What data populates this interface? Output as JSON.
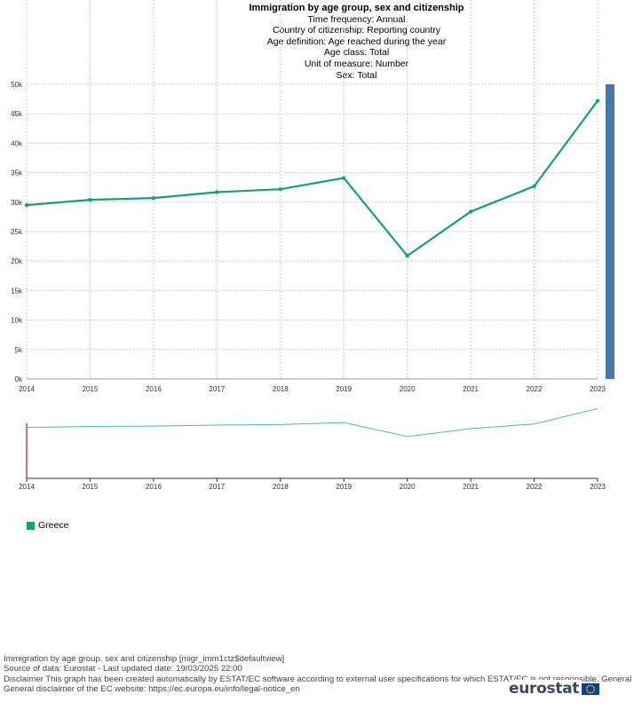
{
  "header": {
    "title": "Immigration by age group, sex and citizenship",
    "lines": [
      "Time frequency:  Annual",
      "Country of citizenship:  Reporting country",
      "Age definition:  Age reached during the year",
      "Age class:  Total",
      "Unit of measure:  Number",
      "Sex:  Total"
    ]
  },
  "chart_data": {
    "type": "line",
    "title": "Immigration by age group, sex and citizenship",
    "x": [
      "2014",
      "2015",
      "2016",
      "2017",
      "2018",
      "2019",
      "2020",
      "2021",
      "2022",
      "2023"
    ],
    "series": [
      {
        "name": "Greece",
        "values": [
          29500,
          30400,
          30700,
          31700,
          32200,
          34100,
          20900,
          28400,
          32700,
          47200
        ]
      }
    ],
    "ylim": [
      0,
      50000
    ],
    "yticks": [
      0,
      5000,
      10000,
      15000,
      20000,
      25000,
      30000,
      35000,
      40000,
      45000,
      50000
    ],
    "ytick_labels": [
      "0k",
      "5k",
      "10k",
      "15k",
      "20k",
      "25k",
      "30k",
      "35k",
      "40k",
      "45k",
      "50k"
    ],
    "xlabel": "",
    "ylabel": "",
    "grid": true,
    "legend": "bottom-left"
  },
  "colors": {
    "series": "#15a07a",
    "navigator_line": "#4cc09a",
    "scrollbar": "#4a78a8",
    "grid": "#cccccc",
    "nav_handle": "#c0392b"
  },
  "legend": {
    "label": "Greece"
  },
  "footer": {
    "lines": [
      "Immigration by age group, sex and citizenship [migr_imm1ctz$defaultview]",
      "Source of data: Eurostat - Last updated date: 19/03/2025 22:00",
      "Disclaimer This graph has been created automatically by ESTAT/EC software according to external user specifications for which ESTAT/EC is not responsible. General",
      "General disclaimer of the EC website: https://ec.europa.eu/info/legal-notice_en"
    ]
  },
  "logo": {
    "text": "eurostat"
  }
}
